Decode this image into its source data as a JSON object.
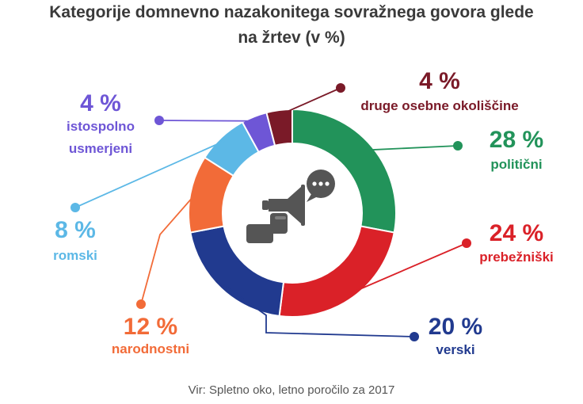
{
  "title_line1": "Kategorije domnevno nazakonitega sovražnega govora glede",
  "title_line2": "na žrtev (v %)",
  "source": "Vir: Spletno oko, letno poročilo za 2017",
  "center_icon": "megaphone-with-speech-bubble-icon",
  "colors": {
    "politicni": "#22935a",
    "prebezniski": "#da2128",
    "verski": "#213a8f",
    "narodnostni": "#f26b38",
    "romski": "#5cb8e6",
    "istospolno_usmerjeni": "#6e56d6",
    "druge": "#7a1a28",
    "icon": "#555555"
  },
  "chart_data": {
    "type": "pie",
    "donut": true,
    "title": "Kategorije domnevno nazakonitega sovražnega govora glede na žrtev (v %)",
    "unit": "%",
    "slices": [
      {
        "key": "politicni",
        "label": "politični",
        "value": 28,
        "pct_label": "28 %",
        "lines": [
          "politični"
        ]
      },
      {
        "key": "prebezniski",
        "label": "prebežniški",
        "value": 24,
        "pct_label": "24 %",
        "lines": [
          "prebežniški"
        ]
      },
      {
        "key": "verski",
        "label": "verski",
        "value": 20,
        "pct_label": "20 %",
        "lines": [
          "verski"
        ]
      },
      {
        "key": "narodnostni",
        "label": "narodnostni",
        "value": 12,
        "pct_label": "12 %",
        "lines": [
          "narodnostni"
        ]
      },
      {
        "key": "romski",
        "label": "romski",
        "value": 8,
        "pct_label": "8 %",
        "lines": [
          "romski"
        ]
      },
      {
        "key": "istospolno_usmerjeni",
        "label": "istospolno usmerjeni",
        "value": 4,
        "pct_label": "4 %",
        "lines": [
          "istospolno",
          "usmerjeni"
        ]
      },
      {
        "key": "druge",
        "label": "druge osebne okoliščine",
        "value": 4,
        "pct_label": "4 %",
        "lines": [
          "druge osebne okoliščine"
        ]
      }
    ]
  }
}
